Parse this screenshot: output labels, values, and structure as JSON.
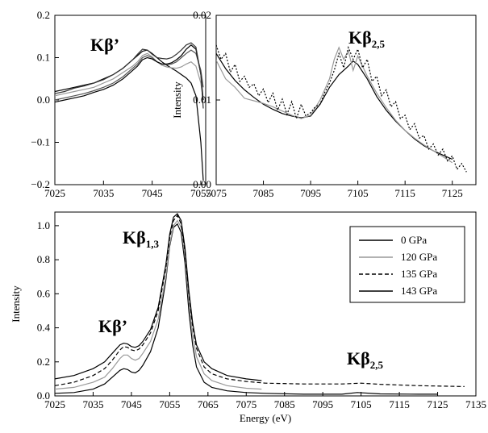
{
  "chart_data": [
    {
      "type": "line",
      "title": "",
      "xlabel": "",
      "ylabel": "",
      "xlim": [
        7025,
        7056
      ],
      "ylim": [
        -0.2,
        0.2
      ],
      "xticks": [
        "7025",
        "7035",
        "7045",
        "7055"
      ],
      "yticks": [
        "0.2",
        "0.1",
        "0.0",
        "−0.1",
        "−0.2"
      ],
      "annotation": {
        "main": "Kβ",
        "sub": "’"
      },
      "series": [
        {
          "x": [
            7025,
            7027,
            7029,
            7031,
            7033,
            7035,
            7037,
            7039,
            7041,
            7042,
            7043,
            7044,
            7045,
            7046,
            7047,
            7048,
            7049,
            7050,
            7051,
            7052,
            7053,
            7054,
            7055,
            7055.5
          ],
          "y": [
            0.02,
            0.025,
            0.03,
            0.035,
            0.04,
            0.05,
            0.06,
            0.075,
            0.095,
            0.105,
            0.115,
            0.118,
            0.11,
            0.1,
            0.09,
            0.082,
            0.075,
            0.068,
            0.06,
            0.052,
            0.04,
            0.01,
            -0.1,
            -0.19
          ]
        },
        {
          "x": [
            7025,
            7027,
            7029,
            7031,
            7033,
            7035,
            7037,
            7039,
            7041,
            7042,
            7043,
            7044,
            7045,
            7046,
            7047,
            7048,
            7049,
            7050,
            7051,
            7052,
            7053,
            7054,
            7055,
            7055.5
          ],
          "y": [
            0.01,
            0.015,
            0.02,
            0.025,
            0.03,
            0.04,
            0.05,
            0.065,
            0.08,
            0.09,
            0.105,
            0.11,
            0.102,
            0.09,
            0.082,
            0.078,
            0.076,
            0.075,
            0.078,
            0.085,
            0.09,
            0.08,
            0.04,
            0.0
          ]
        },
        {
          "x": [
            7025,
            7027,
            7029,
            7031,
            7033,
            7035,
            7037,
            7039,
            7041,
            7042,
            7043,
            7044,
            7045,
            7046,
            7047,
            7048,
            7049,
            7050,
            7051,
            7052,
            7053,
            7054,
            7055,
            7055.5
          ],
          "y": [
            0.0,
            0.005,
            0.01,
            0.015,
            0.022,
            0.03,
            0.04,
            0.055,
            0.075,
            0.085,
            0.1,
            0.105,
            0.1,
            0.09,
            0.085,
            0.083,
            0.085,
            0.09,
            0.1,
            0.11,
            0.118,
            0.11,
            0.07,
            0.03
          ]
        },
        {
          "x": [
            7025,
            7027,
            7029,
            7031,
            7033,
            7035,
            7037,
            7039,
            7041,
            7042,
            7043,
            7044,
            7045,
            7046,
            7047,
            7048,
            7049,
            7050,
            7051,
            7052,
            7053,
            7054,
            7055,
            7055.5
          ],
          "y": [
            -0.005,
            0.0,
            0.005,
            0.01,
            0.018,
            0.025,
            0.035,
            0.05,
            0.07,
            0.08,
            0.095,
            0.1,
            0.097,
            0.09,
            0.085,
            0.085,
            0.088,
            0.095,
            0.105,
            0.12,
            0.13,
            0.12,
            0.06,
            0.0
          ]
        },
        {
          "x": [
            7025,
            7027,
            7029,
            7031,
            7033,
            7035,
            7037,
            7039,
            7041,
            7042,
            7043,
            7044,
            7045,
            7046,
            7047,
            7048,
            7049,
            7050,
            7051,
            7052,
            7053,
            7054,
            7055,
            7055.5
          ],
          "y": [
            0.015,
            0.02,
            0.028,
            0.033,
            0.04,
            0.048,
            0.06,
            0.075,
            0.095,
            0.108,
            0.12,
            0.118,
            0.108,
            0.1,
            0.098,
            0.097,
            0.1,
            0.108,
            0.118,
            0.13,
            0.135,
            0.125,
            0.06,
            -0.02
          ]
        }
      ]
    },
    {
      "type": "line",
      "title": "",
      "xlabel": "",
      "ylabel": "Intensity",
      "xlim": [
        7075,
        7130
      ],
      "ylim": [
        0.0,
        0.02
      ],
      "xticks": [
        "7075",
        "7085",
        "7095",
        "7105",
        "7115",
        "7125"
      ],
      "yticks": [
        "0.02",
        "0.01",
        "0.00"
      ],
      "annotation": {
        "main": "Kβ",
        "sub": "2,5"
      },
      "series": [
        {
          "x": [
            7075,
            7077,
            7079,
            7081,
            7083,
            7085,
            7087,
            7089,
            7091,
            7093,
            7095,
            7097,
            7099,
            7101,
            7103,
            7104,
            7105,
            7107,
            7109,
            7111,
            7113,
            7115,
            7117,
            7119,
            7121,
            7123,
            7125
          ],
          "y": [
            0.0155,
            0.0137,
            0.0123,
            0.0112,
            0.0103,
            0.0095,
            0.0089,
            0.0084,
            0.0081,
            0.0079,
            0.0081,
            0.0095,
            0.0115,
            0.013,
            0.014,
            0.0146,
            0.0142,
            0.0125,
            0.0104,
            0.0088,
            0.0075,
            0.0064,
            0.0054,
            0.0046,
            0.004,
            0.0035,
            0.003
          ]
        },
        {
          "x": [
            7075,
            7077,
            7079,
            7081,
            7083,
            7085,
            7087,
            7089,
            7091,
            7093,
            7095,
            7097,
            7099,
            7100,
            7101,
            7102,
            7103,
            7104,
            7105,
            7107,
            7109,
            7111,
            7113,
            7115,
            7117,
            7119,
            7121,
            7123,
            7125
          ],
          "y": [
            0.0147,
            0.0125,
            0.0115,
            0.0102,
            0.0099,
            0.0096,
            0.0092,
            0.0087,
            0.0082,
            0.0078,
            0.0082,
            0.01,
            0.0125,
            0.0148,
            0.0162,
            0.0148,
            0.0158,
            0.0135,
            0.0152,
            0.0128,
            0.0108,
            0.0091,
            0.0076,
            0.0064,
            0.0055,
            0.0047,
            0.004,
            0.0033,
            0.0026
          ]
        },
        {
          "x": [
            7075,
            7076,
            7077,
            7078,
            7079,
            7080,
            7081,
            7082,
            7083,
            7084,
            7085,
            7086,
            7087,
            7088,
            7089,
            7090,
            7091,
            7092,
            7093,
            7094,
            7095,
            7096,
            7097,
            7098,
            7099,
            7100,
            7101,
            7102,
            7103,
            7104,
            7105,
            7106,
            7107,
            7108,
            7109,
            7110,
            7111,
            7112,
            7113,
            7114,
            7115,
            7116,
            7117,
            7118,
            7119,
            7120,
            7121,
            7122,
            7123,
            7124,
            7125,
            7126,
            7127,
            7128
          ],
          "y": [
            0.0165,
            0.0148,
            0.0155,
            0.0133,
            0.0142,
            0.0122,
            0.0128,
            0.0115,
            0.0119,
            0.0105,
            0.0113,
            0.0097,
            0.0108,
            0.0088,
            0.0101,
            0.0083,
            0.0098,
            0.0078,
            0.0095,
            0.0081,
            0.0085,
            0.0092,
            0.0095,
            0.0109,
            0.012,
            0.0135,
            0.0155,
            0.0138,
            0.0162,
            0.0148,
            0.016,
            0.0138,
            0.0148,
            0.0122,
            0.0128,
            0.0105,
            0.0112,
            0.0092,
            0.0098,
            0.0078,
            0.0082,
            0.0065,
            0.0072,
            0.0055,
            0.0058,
            0.0042,
            0.0048,
            0.0035,
            0.0042,
            0.0028,
            0.0034,
            0.0018,
            0.0025,
            0.0015
          ]
        }
      ]
    },
    {
      "type": "line",
      "title": "",
      "xlabel": "Energy (eV)",
      "ylabel": "Intensity",
      "xlim": [
        7025,
        7135
      ],
      "ylim": [
        0.0,
        1.08
      ],
      "xticks": [
        "7025",
        "7035",
        "7045",
        "7055",
        "7065",
        "7075",
        "7085",
        "7095",
        "7105",
        "7115",
        "7125",
        "7135"
      ],
      "yticks": [
        "1.0",
        "0.8",
        "0.6",
        "0.4",
        "0.2",
        "0.0"
      ],
      "annotations": [
        {
          "main": "Kβ",
          "sub": "1,3"
        },
        {
          "main": "Kβ",
          "sub": "’"
        },
        {
          "main": "Kβ",
          "sub": "2,5"
        }
      ],
      "legend_position": "top-right",
      "series": [
        {
          "name": "0 GPa",
          "dash": "solid",
          "color": "#000000",
          "x": [
            7025,
            7030,
            7035,
            7038,
            7040,
            7042,
            7043,
            7044,
            7045,
            7046,
            7047,
            7048,
            7050,
            7052,
            7054,
            7055,
            7056,
            7057,
            7058,
            7059,
            7060,
            7061,
            7062,
            7064,
            7066,
            7070,
            7075,
            7080,
            7090,
            7100,
            7104,
            7110,
            7120,
            7125
          ],
          "y": [
            0.015,
            0.02,
            0.04,
            0.07,
            0.11,
            0.15,
            0.16,
            0.155,
            0.14,
            0.135,
            0.15,
            0.18,
            0.26,
            0.4,
            0.68,
            0.88,
            0.99,
            1.01,
            0.96,
            0.78,
            0.5,
            0.3,
            0.17,
            0.08,
            0.05,
            0.03,
            0.02,
            0.015,
            0.01,
            0.01,
            0.02,
            0.012,
            0.01,
            0.01
          ]
        },
        {
          "name": "120 GPa",
          "dash": "solid",
          "color": "#999999",
          "x": [
            7025,
            7030,
            7035,
            7038,
            7040,
            7042,
            7043,
            7044,
            7045,
            7046,
            7047,
            7048,
            7050,
            7052,
            7054,
            7055,
            7056,
            7057,
            7058,
            7059,
            7060,
            7061,
            7062,
            7064,
            7066,
            7070,
            7075,
            7079
          ],
          "y": [
            0.04,
            0.05,
            0.08,
            0.11,
            0.16,
            0.22,
            0.24,
            0.24,
            0.22,
            0.21,
            0.22,
            0.25,
            0.32,
            0.45,
            0.7,
            0.89,
            1.0,
            1.03,
            0.99,
            0.82,
            0.56,
            0.36,
            0.23,
            0.13,
            0.09,
            0.06,
            0.045,
            0.04
          ]
        },
        {
          "name": "135 GPa",
          "dash": "dashed",
          "color": "#000000",
          "x": [
            7025,
            7030,
            7035,
            7038,
            7040,
            7042,
            7043,
            7044,
            7045,
            7046,
            7047,
            7048,
            7050,
            7052,
            7054,
            7055,
            7056,
            7057,
            7058,
            7059,
            7060,
            7061,
            7062,
            7064,
            7066,
            7070,
            7075,
            7080,
            7090,
            7100,
            7105,
            7110,
            7120,
            7132
          ],
          "y": [
            0.06,
            0.08,
            0.12,
            0.16,
            0.21,
            0.27,
            0.29,
            0.285,
            0.27,
            0.265,
            0.275,
            0.3,
            0.37,
            0.5,
            0.75,
            0.93,
            1.03,
            1.06,
            1.01,
            0.85,
            0.6,
            0.41,
            0.28,
            0.17,
            0.13,
            0.1,
            0.085,
            0.075,
            0.07,
            0.07,
            0.075,
            0.068,
            0.06,
            0.055
          ]
        },
        {
          "name": "143 GPa",
          "dash": "solid",
          "color": "#000000",
          "x": [
            7025,
            7030,
            7035,
            7038,
            7040,
            7042,
            7043,
            7044,
            7045,
            7046,
            7047,
            7048,
            7050,
            7052,
            7054,
            7055,
            7056,
            7057,
            7058,
            7059,
            7060,
            7061,
            7062,
            7064,
            7066,
            7070,
            7075,
            7079
          ],
          "y": [
            0.1,
            0.12,
            0.16,
            0.2,
            0.25,
            0.3,
            0.31,
            0.305,
            0.29,
            0.285,
            0.295,
            0.32,
            0.39,
            0.52,
            0.77,
            0.95,
            1.05,
            1.07,
            1.03,
            0.87,
            0.62,
            0.43,
            0.3,
            0.2,
            0.16,
            0.12,
            0.1,
            0.09
          ]
        }
      ]
    }
  ]
}
